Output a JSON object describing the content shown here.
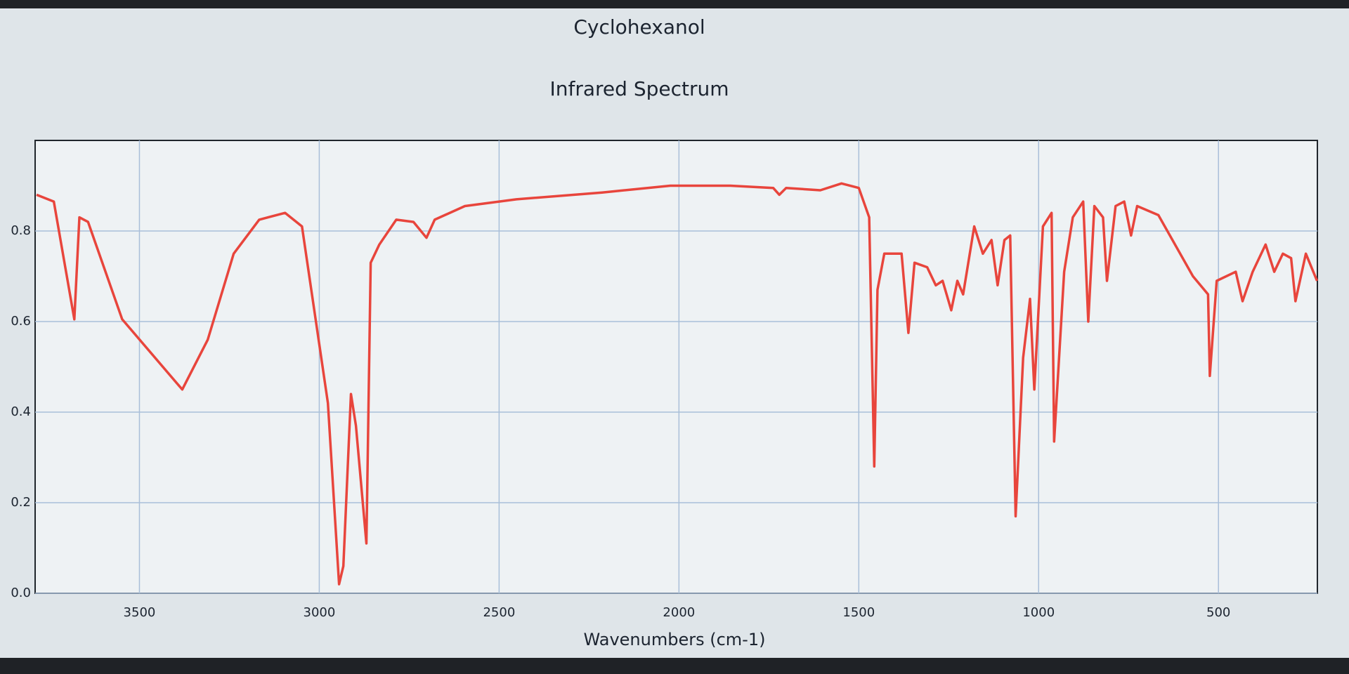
{
  "chart_data": {
    "type": "line",
    "title": "Cyclohexanol",
    "subtitle": "Infrared Spectrum",
    "x_label": "Wavenumbers (cm-1)",
    "x": [
      3786,
      3738,
      3681,
      3667,
      3643,
      3548,
      3381,
      3310,
      3238,
      3167,
      3095,
      3048,
      2976,
      2945,
      2933,
      2912,
      2898,
      2869,
      2857,
      2833,
      2786,
      2738,
      2702,
      2679,
      2595,
      2452,
      2214,
      2024,
      1857,
      1738,
      1721,
      1702,
      1607,
      1548,
      1500,
      1471,
      1457,
      1448,
      1429,
      1381,
      1362,
      1345,
      1310,
      1286,
      1267,
      1243,
      1226,
      1210,
      1179,
      1155,
      1131,
      1114,
      1095,
      1079,
      1064,
      1043,
      1024,
      1012,
      988,
      964,
      957,
      929,
      905,
      876,
      862,
      845,
      821,
      810,
      786,
      762,
      743,
      726,
      667,
      571,
      529,
      524,
      505,
      452,
      433,
      405,
      369,
      345,
      321,
      298,
      286,
      257,
      226
    ],
    "series": [
      {
        "color": "#e8453c",
        "values": [
          0.88,
          0.865,
          0.605,
          0.83,
          0.82,
          0.605,
          0.45,
          0.56,
          0.75,
          0.825,
          0.84,
          0.81,
          0.42,
          0.02,
          0.06,
          0.44,
          0.37,
          0.11,
          0.73,
          0.77,
          0.825,
          0.82,
          0.785,
          0.825,
          0.855,
          0.87,
          0.885,
          0.9,
          0.9,
          0.895,
          0.88,
          0.895,
          0.89,
          0.905,
          0.895,
          0.83,
          0.28,
          0.67,
          0.75,
          0.75,
          0.575,
          0.73,
          0.72,
          0.68,
          0.69,
          0.625,
          0.69,
          0.66,
          0.81,
          0.75,
          0.78,
          0.68,
          0.78,
          0.79,
          0.17,
          0.52,
          0.65,
          0.45,
          0.81,
          0.84,
          0.335,
          0.71,
          0.83,
          0.865,
          0.6,
          0.855,
          0.83,
          0.69,
          0.855,
          0.865,
          0.79,
          0.855,
          0.835,
          0.7,
          0.66,
          0.48,
          0.69,
          0.71,
          0.645,
          0.71,
          0.77,
          0.71,
          0.75,
          0.74,
          0.645,
          0.75,
          0.69
        ]
      }
    ],
    "xlim": [
      3790,
      225
    ],
    "xticks": [
      3500,
      3000,
      2500,
      2000,
      1500,
      1000,
      500
    ],
    "ylim": [
      0,
      1
    ],
    "yticks": [
      {
        "value": 0,
        "label": "0.0"
      },
      0.2,
      0.4,
      0.6,
      0.8
    ],
    "grid": true
  }
}
